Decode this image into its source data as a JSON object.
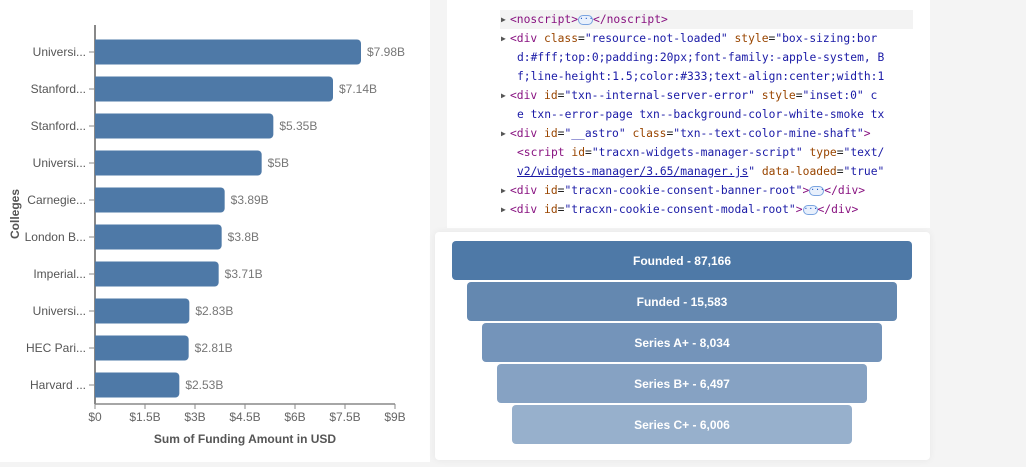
{
  "chart_data": [
    {
      "type": "bar",
      "orientation": "horizontal",
      "categories": [
        "Universi...",
        "Stanford...",
        "Stanford...",
        "Universi...",
        "Carnegie...",
        "London B...",
        "Imperial...",
        "Universi...",
        "HEC Pari...",
        "Harvard ..."
      ],
      "values": [
        7.98,
        7.14,
        5.35,
        5.0,
        3.89,
        3.8,
        3.71,
        2.83,
        2.81,
        2.53
      ],
      "data_labels": [
        "$7.98B",
        "$7.14B",
        "$5.35B",
        "$5B",
        "$3.89B",
        "$3.8B",
        "$3.71B",
        "$2.83B",
        "$2.81B",
        "$2.53B"
      ],
      "unit": "billion USD",
      "xlabel": "Sum of Funding Amount in USD",
      "ylabel": "Colleges",
      "xlim": [
        0,
        9
      ],
      "xticks": [
        0,
        1.5,
        3,
        4.5,
        6,
        7.5,
        9
      ],
      "xtick_labels": [
        "$0",
        "$1.5B",
        "$3B",
        "$4.5B",
        "$6B",
        "$7.5B",
        "$9B"
      ],
      "grid": false,
      "color": "#4e79a7"
    },
    {
      "type": "funnel",
      "categories": [
        "Founded",
        "Funded",
        "Series A+",
        "Series B+",
        "Series C+"
      ],
      "values": [
        87166,
        15583,
        8034,
        6497,
        6006
      ],
      "labels": [
        "Founded - 87,166",
        "Funded - 15,583",
        "Series A+ - 8,034",
        "Series B+ - 6,497",
        "Series C+ - 6,006"
      ],
      "colors": [
        "#4e79a7",
        "#6488b0",
        "#7494ba",
        "#86a2c3",
        "#97b0cc"
      ]
    }
  ],
  "devtools": {
    "lines": [
      {
        "k": "noscript",
        "parts": [
          [
            "tag",
            "<noscript>"
          ],
          [
            "dots",
            ""
          ],
          [
            "tag",
            "</noscript>"
          ]
        ]
      },
      {
        "k": "div",
        "parts": [
          [
            "tag",
            "<div "
          ],
          [
            "attr",
            "class"
          ],
          [
            "txt",
            "="
          ],
          [
            "val",
            "\"resource-not-loaded\""
          ],
          [
            "txt",
            " "
          ],
          [
            "attr",
            "style"
          ],
          [
            "txt",
            "="
          ],
          [
            "val",
            "\"box-sizing:bor"
          ]
        ]
      },
      {
        "k": "cont",
        "parts": [
          [
            "val",
            "d:#fff;top:0;padding:20px;font-family:-apple-system, B"
          ]
        ]
      },
      {
        "k": "cont",
        "parts": [
          [
            "val",
            "f;line-height:1.5;color:#333;text-align:center;width:1"
          ]
        ]
      },
      {
        "k": "div",
        "parts": [
          [
            "tag",
            "<div "
          ],
          [
            "attr",
            "id"
          ],
          [
            "txt",
            "="
          ],
          [
            "val",
            "\"txn--internal-server-error\""
          ],
          [
            "txt",
            " "
          ],
          [
            "attr",
            "style"
          ],
          [
            "txt",
            "="
          ],
          [
            "val",
            "\"inset:0\" c"
          ]
        ]
      },
      {
        "k": "cont",
        "parts": [
          [
            "val",
            "e txn--error-page txn--background-color-white-smoke tx"
          ]
        ]
      },
      {
        "k": "div",
        "parts": [
          [
            "tag",
            "<div "
          ],
          [
            "attr",
            "id"
          ],
          [
            "txt",
            "="
          ],
          [
            "val",
            "\"__astro\""
          ],
          [
            "txt",
            " "
          ],
          [
            "attr",
            "class"
          ],
          [
            "txt",
            "="
          ],
          [
            "val",
            "\"txn--text-color-mine-shaft\""
          ],
          [
            "tag",
            ">"
          ]
        ]
      },
      {
        "k": "plain",
        "parts": [
          [
            "tag",
            "<script "
          ],
          [
            "attr",
            "id"
          ],
          [
            "txt",
            "="
          ],
          [
            "val",
            "\"tracxn-widgets-manager-script\""
          ],
          [
            "txt",
            " "
          ],
          [
            "attr",
            "type"
          ],
          [
            "txt",
            "="
          ],
          [
            "val",
            "\"text/"
          ]
        ]
      },
      {
        "k": "plain",
        "parts": [
          [
            "link",
            "v2/widgets-manager/3.65/manager.js"
          ],
          [
            "val",
            "\""
          ],
          [
            "txt",
            " "
          ],
          [
            "attr",
            "data-loaded"
          ],
          [
            "txt",
            "="
          ],
          [
            "val",
            "\"true\""
          ]
        ]
      },
      {
        "k": "div",
        "parts": [
          [
            "tag",
            "<div "
          ],
          [
            "attr",
            "id"
          ],
          [
            "txt",
            "="
          ],
          [
            "val",
            "\"tracxn-cookie-consent-banner-root\""
          ],
          [
            "tag",
            ">"
          ],
          [
            "dots",
            ""
          ],
          [
            "tag",
            "</div>"
          ]
        ]
      },
      {
        "k": "div",
        "parts": [
          [
            "tag",
            "<div "
          ],
          [
            "attr",
            "id"
          ],
          [
            "txt",
            "="
          ],
          [
            "val",
            "\"tracxn-cookie-consent-modal-root\""
          ],
          [
            "tag",
            ">"
          ],
          [
            "dots",
            ""
          ],
          [
            "tag",
            "</div>"
          ]
        ]
      }
    ]
  }
}
